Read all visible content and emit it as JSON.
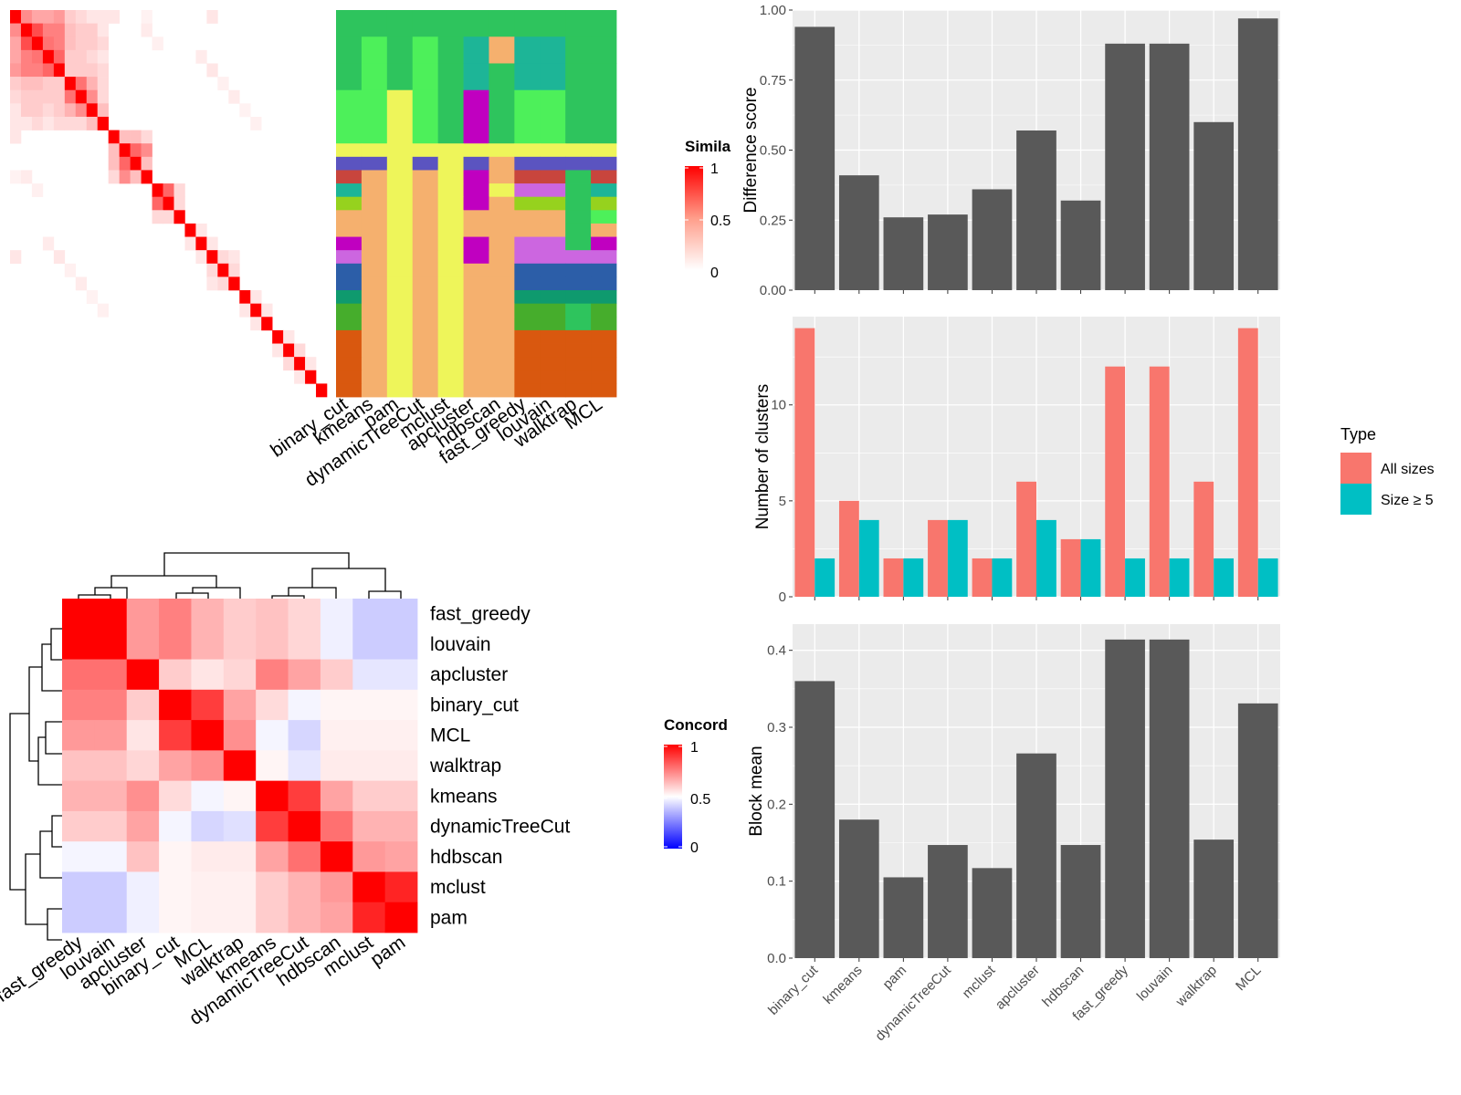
{
  "colors": {
    "panel_bg": "#ebebeb",
    "grid": "#ffffff",
    "bar_dark": "#595959",
    "all_sizes": "#f8766d",
    "size_ge5": "#00bfc4",
    "heat_high": "#ff0000",
    "heat_mid": "#ffffff",
    "heat_low": "#0000ff"
  },
  "similarity_heatmap": {
    "legend_title": "Simila",
    "legend_ticks": [
      "1",
      "0.5",
      "0"
    ],
    "n": 29,
    "nonzero": [
      [
        0,
        1,
        0.45
      ],
      [
        0,
        2,
        0.35
      ],
      [
        0,
        3,
        0.35
      ],
      [
        0,
        4,
        0.4
      ],
      [
        0,
        5,
        0.2
      ],
      [
        0,
        6,
        0.15
      ],
      [
        0,
        7,
        0.1
      ],
      [
        0,
        8,
        0.1
      ],
      [
        0,
        9,
        0.1
      ],
      [
        0,
        18,
        0.1
      ],
      [
        1,
        2,
        0.7
      ],
      [
        1,
        3,
        0.5
      ],
      [
        1,
        4,
        0.5
      ],
      [
        1,
        5,
        0.25
      ],
      [
        1,
        6,
        0.2
      ],
      [
        1,
        7,
        0.2
      ],
      [
        1,
        8,
        0.1
      ],
      [
        2,
        3,
        0.55
      ],
      [
        2,
        4,
        0.5
      ],
      [
        2,
        5,
        0.25
      ],
      [
        2,
        6,
        0.2
      ],
      [
        2,
        7,
        0.2
      ],
      [
        2,
        8,
        0.15
      ],
      [
        3,
        4,
        0.6
      ],
      [
        3,
        5,
        0.2
      ],
      [
        3,
        6,
        0.2
      ],
      [
        3,
        7,
        0.15
      ],
      [
        3,
        8,
        0.1
      ],
      [
        4,
        5,
        0.2
      ],
      [
        4,
        6,
        0.2
      ],
      [
        4,
        7,
        0.2
      ],
      [
        4,
        8,
        0.15
      ],
      [
        5,
        6,
        0.55
      ],
      [
        5,
        7,
        0.3
      ],
      [
        5,
        8,
        0.15
      ],
      [
        6,
        7,
        0.45
      ],
      [
        6,
        8,
        0.15
      ],
      [
        7,
        8,
        0.25
      ],
      [
        9,
        10,
        0.25
      ],
      [
        9,
        11,
        0.25
      ],
      [
        9,
        12,
        0.15
      ],
      [
        10,
        11,
        0.6
      ],
      [
        10,
        12,
        0.45
      ],
      [
        11,
        12,
        0.25
      ],
      [
        13,
        14,
        0.6
      ],
      [
        13,
        15,
        0.15
      ],
      [
        14,
        15,
        0.15
      ],
      [
        16,
        17,
        0.1
      ],
      [
        17,
        18,
        0.1
      ],
      [
        18,
        19,
        0.15
      ],
      [
        18,
        20,
        0.1
      ],
      [
        19,
        20,
        0.15
      ],
      [
        21,
        22,
        0.1
      ],
      [
        22,
        23,
        0.1
      ],
      [
        24,
        25,
        0.1
      ],
      [
        25,
        26,
        0.15
      ],
      [
        26,
        27,
        0.1
      ],
      [
        0,
        12,
        0.05
      ],
      [
        1,
        12,
        0.08
      ],
      [
        2,
        13,
        0.06
      ],
      [
        3,
        17,
        0.08
      ],
      [
        4,
        18,
        0.1
      ],
      [
        5,
        19,
        0.06
      ],
      [
        6,
        20,
        0.08
      ],
      [
        7,
        21,
        0.05
      ],
      [
        8,
        22,
        0.06
      ]
    ]
  },
  "cluster_matrix": {
    "methods": [
      "binary_cut",
      "kmeans",
      "pam",
      "dynamicTreeCut",
      "mclust",
      "apcluster",
      "hdbscan",
      "fast_greedy",
      "louvain",
      "walktrap",
      "MCL"
    ],
    "row_groups": [
      2,
      2,
      2,
      4,
      1,
      1,
      1,
      1,
      1,
      1,
      1,
      1,
      1,
      1,
      1,
      1,
      1,
      1,
      1,
      1,
      1,
      1,
      1
    ],
    "cells": [
      [
        "#2ec45d",
        "#2ec45d",
        "#2ec45d",
        "#2ec45d",
        "#2ec45d",
        "#2ec45d",
        "#2ec45d",
        "#2ec45d",
        "#2ec45d",
        "#2ec45d",
        "#2ec45d"
      ],
      [
        "#2ec45d",
        "#4df05a",
        "#2ec45d",
        "#4df05a",
        "#2ec45d",
        "#1db597",
        "#f5b06e",
        "#1db597",
        "#1db597",
        "#2ec45d",
        "#2ec45d"
      ],
      [
        "#2ec45d",
        "#4df05a",
        "#2ec45d",
        "#4df05a",
        "#2ec45d",
        "#1db597",
        "#2ec45d",
        "#1db597",
        "#1db597",
        "#2ec45d",
        "#2ec45d"
      ],
      [
        "#4df05a",
        "#4df05a",
        "#eef55a",
        "#4df05a",
        "#2ec45d",
        "#c000c0",
        "#2ec45d",
        "#4df05a",
        "#4df05a",
        "#2ec45d",
        "#2ec45d"
      ],
      [
        "#eef55a",
        "#eef55a",
        "#eef55a",
        "#eef55a",
        "#eef55a",
        "#eef55a",
        "#eef55a",
        "#eef55a",
        "#eef55a",
        "#eef55a",
        "#eef55a"
      ],
      [
        "#5b54c0",
        "#5b54c0",
        "#eef55a",
        "#5b54c0",
        "#eef55a",
        "#5b54c0",
        "#f5b06e",
        "#5b54c0",
        "#5b54c0",
        "#5b54c0",
        "#5b54c0"
      ],
      [
        "#c8453d",
        "#f5b06e",
        "#eef55a",
        "#f5b06e",
        "#eef55a",
        "#c000c0",
        "#f5b06e",
        "#c8453d",
        "#c8453d",
        "#2ec45d",
        "#c8453d"
      ],
      [
        "#1db597",
        "#f5b06e",
        "#eef55a",
        "#f5b06e",
        "#eef55a",
        "#c000c0",
        "#eef55a",
        "#cc66e0",
        "#cc66e0",
        "#2ec45d",
        "#1db597"
      ],
      [
        "#96d21e",
        "#f5b06e",
        "#eef55a",
        "#f5b06e",
        "#eef55a",
        "#c000c0",
        "#f5b06e",
        "#96d21e",
        "#96d21e",
        "#2ec45d",
        "#96d21e"
      ],
      [
        "#f5b06e",
        "#f5b06e",
        "#eef55a",
        "#f5b06e",
        "#eef55a",
        "#f5b06e",
        "#f5b06e",
        "#f5b06e",
        "#f5b06e",
        "#2ec45d",
        "#4df05a"
      ],
      [
        "#f5b06e",
        "#f5b06e",
        "#eef55a",
        "#f5b06e",
        "#eef55a",
        "#f5b06e",
        "#f5b06e",
        "#f5b06e",
        "#f5b06e",
        "#2ec45d",
        "#f5b06e"
      ],
      [
        "#c000c0",
        "#f5b06e",
        "#eef55a",
        "#f5b06e",
        "#eef55a",
        "#c000c0",
        "#f5b06e",
        "#cc66e0",
        "#cc66e0",
        "#2ec45d",
        "#c000c0"
      ],
      [
        "#cc66e0",
        "#f5b06e",
        "#eef55a",
        "#f5b06e",
        "#eef55a",
        "#c000c0",
        "#f5b06e",
        "#cc66e0",
        "#cc66e0",
        "#cc66e0",
        "#cc66e0"
      ],
      [
        "#2c5ea8",
        "#f5b06e",
        "#eef55a",
        "#f5b06e",
        "#eef55a",
        "#f5b06e",
        "#f5b06e",
        "#2c5ea8",
        "#2c5ea8",
        "#2c5ea8",
        "#2c5ea8"
      ],
      [
        "#2c5ea8",
        "#f5b06e",
        "#eef55a",
        "#f5b06e",
        "#eef55a",
        "#f5b06e",
        "#f5b06e",
        "#2c5ea8",
        "#2c5ea8",
        "#2c5ea8",
        "#2c5ea8"
      ],
      [
        "#0f9a6e",
        "#f5b06e",
        "#eef55a",
        "#f5b06e",
        "#eef55a",
        "#f5b06e",
        "#f5b06e",
        "#0f9a6e",
        "#0f9a6e",
        "#0f9a6e",
        "#0f9a6e"
      ],
      [
        "#46ad2c",
        "#f5b06e",
        "#eef55a",
        "#f5b06e",
        "#eef55a",
        "#f5b06e",
        "#f5b06e",
        "#46ad2c",
        "#46ad2c",
        "#2ec45d",
        "#46ad2c"
      ],
      [
        "#46ad2c",
        "#f5b06e",
        "#eef55a",
        "#f5b06e",
        "#eef55a",
        "#f5b06e",
        "#f5b06e",
        "#46ad2c",
        "#46ad2c",
        "#2ec45d",
        "#46ad2c"
      ],
      [
        "#d9580f",
        "#f5b06e",
        "#eef55a",
        "#f5b06e",
        "#eef55a",
        "#f5b06e",
        "#f5b06e",
        "#d9580f",
        "#d9580f",
        "#d9580f",
        "#d9580f"
      ],
      [
        "#d9580f",
        "#f5b06e",
        "#eef55a",
        "#f5b06e",
        "#eef55a",
        "#f5b06e",
        "#f5b06e",
        "#d9580f",
        "#d9580f",
        "#d9580f",
        "#d9580f"
      ],
      [
        "#d9580f",
        "#f5b06e",
        "#eef55a",
        "#f5b06e",
        "#eef55a",
        "#f5b06e",
        "#f5b06e",
        "#d9580f",
        "#d9580f",
        "#d9580f",
        "#d9580f"
      ],
      [
        "#d9580f",
        "#f5b06e",
        "#eef55a",
        "#f5b06e",
        "#eef55a",
        "#f5b06e",
        "#f5b06e",
        "#d9580f",
        "#d9580f",
        "#d9580f",
        "#d9580f"
      ],
      [
        "#d9580f",
        "#f5b06e",
        "#eef55a",
        "#f5b06e",
        "#eef55a",
        "#f5b06e",
        "#f5b06e",
        "#d9580f",
        "#d9580f",
        "#d9580f",
        "#d9580f"
      ]
    ]
  },
  "concordance_heatmap": {
    "legend_title": "Concord",
    "legend_ticks": [
      "1",
      "0.5",
      "0"
    ],
    "labels": [
      "fast_greedy",
      "louvain",
      "apcluster",
      "binary_cut",
      "MCL",
      "walktrap",
      "kmeans",
      "dynamicTreeCut",
      "hdbscan",
      "mclust",
      "pam"
    ],
    "values": [
      [
        1.0,
        1.0,
        0.7,
        0.75,
        0.65,
        0.6,
        0.62,
        0.58,
        0.47,
        0.4,
        0.4
      ],
      [
        1.0,
        1.0,
        0.7,
        0.75,
        0.65,
        0.6,
        0.62,
        0.58,
        0.47,
        0.4,
        0.4
      ],
      [
        0.78,
        0.78,
        1.0,
        0.6,
        0.55,
        0.58,
        0.75,
        0.68,
        0.6,
        0.45,
        0.45
      ],
      [
        0.75,
        0.75,
        0.6,
        1.0,
        0.88,
        0.68,
        0.57,
        0.48,
        0.52,
        0.52,
        0.52
      ],
      [
        0.7,
        0.7,
        0.55,
        0.88,
        1.0,
        0.72,
        0.48,
        0.42,
        0.53,
        0.53,
        0.53
      ],
      [
        0.62,
        0.62,
        0.58,
        0.68,
        0.72,
        1.0,
        0.52,
        0.45,
        0.54,
        0.54,
        0.54
      ],
      [
        0.65,
        0.65,
        0.72,
        0.57,
        0.48,
        0.52,
        1.0,
        0.88,
        0.68,
        0.6,
        0.6
      ],
      [
        0.6,
        0.6,
        0.68,
        0.48,
        0.42,
        0.44,
        0.88,
        1.0,
        0.78,
        0.65,
        0.65
      ],
      [
        0.48,
        0.48,
        0.62,
        0.52,
        0.54,
        0.54,
        0.68,
        0.78,
        1.0,
        0.7,
        0.68
      ],
      [
        0.4,
        0.4,
        0.47,
        0.52,
        0.53,
        0.53,
        0.6,
        0.65,
        0.7,
        1.0,
        0.93
      ],
      [
        0.4,
        0.4,
        0.47,
        0.52,
        0.53,
        0.53,
        0.6,
        0.65,
        0.68,
        0.93,
        1.0
      ]
    ]
  },
  "chart_data": [
    {
      "type": "bar",
      "categories": [
        "binary_cut",
        "kmeans",
        "pam",
        "dynamicTreeCut",
        "mclust",
        "apcluster",
        "hdbscan",
        "fast_greedy",
        "louvain",
        "walktrap",
        "MCL"
      ],
      "values": [
        0.94,
        0.41,
        0.26,
        0.27,
        0.36,
        0.57,
        0.32,
        0.88,
        0.88,
        0.6,
        0.97
      ],
      "xlabel": "",
      "ylabel": "Difference score",
      "ylim": [
        0,
        1.0
      ],
      "yticks": [
        "0.00",
        "0.25",
        "0.50",
        "0.75",
        "1.00"
      ],
      "grid": true
    },
    {
      "type": "bar",
      "categories": [
        "binary_cut",
        "kmeans",
        "pam",
        "dynamicTreeCut",
        "mclust",
        "apcluster",
        "hdbscan",
        "fast_greedy",
        "louvain",
        "walktrap",
        "MCL"
      ],
      "series": [
        {
          "name": "All sizes",
          "values": [
            14,
            5,
            2,
            4,
            2,
            6,
            3,
            12,
            12,
            6,
            14
          ]
        },
        {
          "name": "Size ≥ 5",
          "values": [
            2,
            4,
            2,
            4,
            2,
            4,
            3,
            2,
            2,
            2,
            2
          ]
        }
      ],
      "xlabel": "",
      "ylabel": "Number of clusters",
      "ylim": [
        0,
        14.6
      ],
      "yticks": [
        "0",
        "5",
        "10"
      ],
      "legend": {
        "title": "Type",
        "position": "right"
      },
      "grid": true
    },
    {
      "type": "bar",
      "categories": [
        "binary_cut",
        "kmeans",
        "pam",
        "dynamicTreeCut",
        "mclust",
        "apcluster",
        "hdbscan",
        "fast_greedy",
        "louvain",
        "walktrap",
        "MCL"
      ],
      "values": [
        0.36,
        0.18,
        0.105,
        0.147,
        0.117,
        0.266,
        0.147,
        0.414,
        0.414,
        0.154,
        0.331
      ],
      "xlabel": "",
      "ylabel": "Block mean",
      "ylim": [
        0,
        0.434
      ],
      "yticks": [
        "0.0",
        "0.1",
        "0.2",
        "0.3",
        "0.4"
      ],
      "grid": true
    }
  ]
}
